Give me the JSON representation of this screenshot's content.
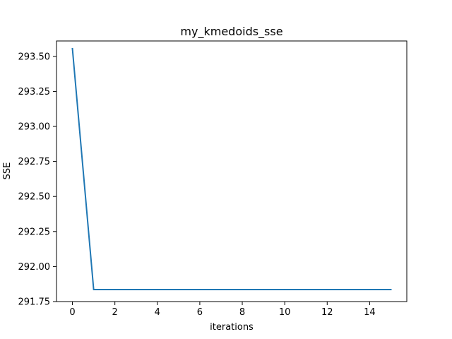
{
  "chart_data": {
    "type": "line",
    "title": "my_kmedoids_sse",
    "xlabel": "iterations",
    "ylabel": "SSE",
    "xlim": [
      -0.75,
      15.75
    ],
    "ylim": [
      291.75,
      293.61
    ],
    "xticks": [
      0,
      2,
      4,
      6,
      8,
      10,
      12,
      14
    ],
    "xtick_labels": [
      "0",
      "2",
      "4",
      "6",
      "8",
      "10",
      "12",
      "14"
    ],
    "yticks": [
      291.75,
      292.0,
      292.25,
      292.5,
      292.75,
      293.0,
      293.25,
      293.5
    ],
    "ytick_labels": [
      "291.75",
      "292.00",
      "292.25",
      "292.50",
      "292.75",
      "293.00",
      "293.25",
      "293.50"
    ],
    "grid": false,
    "series": [
      {
        "color": "#1f77b4",
        "x": [
          0,
          1,
          2,
          3,
          4,
          5,
          6,
          7,
          8,
          9,
          10,
          11,
          12,
          13,
          14,
          15
        ],
        "y": [
          293.555,
          291.836,
          291.836,
          291.836,
          291.836,
          291.836,
          291.836,
          291.836,
          291.836,
          291.836,
          291.836,
          291.836,
          291.836,
          291.836,
          291.836,
          291.836
        ]
      }
    ]
  }
}
